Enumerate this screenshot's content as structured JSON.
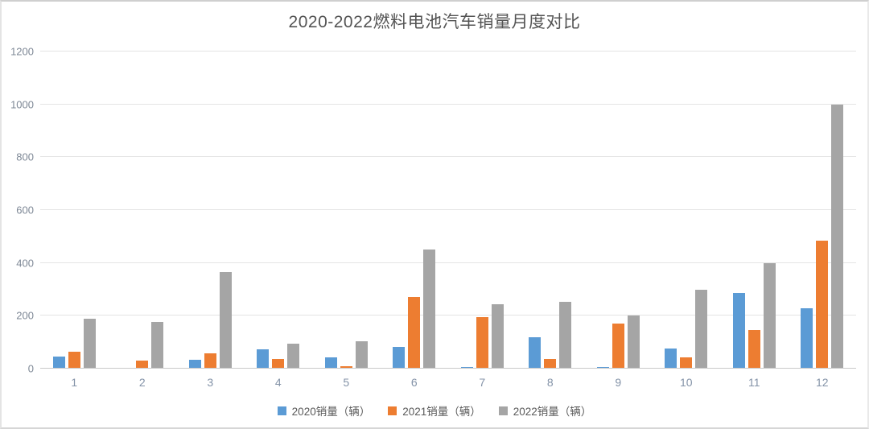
{
  "title": "2020-2022燃料电池汽车销量月度对比",
  "chart_data": {
    "type": "bar",
    "title": "2020-2022燃料电池汽车销量月度对比",
    "categories": [
      "1",
      "2",
      "3",
      "4",
      "5",
      "6",
      "7",
      "8",
      "9",
      "10",
      "11",
      "12"
    ],
    "series": [
      {
        "name": "2020销量（辆）",
        "color": "#5B9BD5",
        "values": [
          45,
          0,
          35,
          72,
          43,
          82,
          5,
          118,
          7,
          75,
          287,
          227
        ]
      },
      {
        "name": "2021销量（辆）",
        "color": "#ED7D31",
        "values": [
          65,
          30,
          58,
          38,
          10,
          270,
          195,
          38,
          172,
          44,
          145,
          483
        ]
      },
      {
        "name": "2022销量（辆）",
        "color": "#A5A5A5",
        "values": [
          190,
          178,
          365,
          95,
          105,
          450,
          243,
          252,
          200,
          300,
          400,
          1000
        ]
      }
    ],
    "xlabel": "",
    "ylabel": "",
    "ylim": [
      0,
      1200
    ],
    "yticks": [
      0,
      200,
      400,
      600,
      800,
      1000,
      1200
    ],
    "grid": true,
    "legend_position": "bottom"
  },
  "colors": {
    "background": "#ffffff",
    "frame_border": "#d9d9d9",
    "gridline": "#e4e4e4",
    "axis_line": "#c9c9c9",
    "title_text": "#545454",
    "ytick_text": "#7e8896",
    "xtick_text": "#8493a8",
    "legend_text": "#595959"
  }
}
